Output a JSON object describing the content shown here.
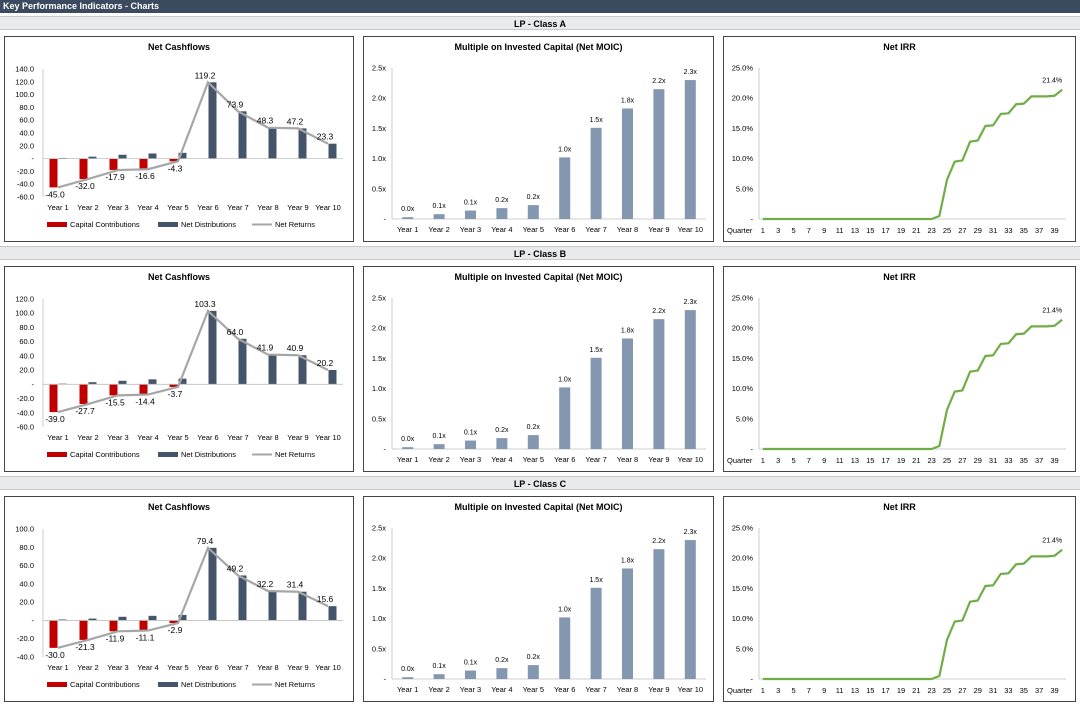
{
  "page": {
    "title": "Key Performance Indicators - Charts",
    "sections": [
      "LP - Class A",
      "LP - Class B",
      "LP - Class C"
    ]
  },
  "colors": {
    "contributions": "#c00000",
    "distributions": "#44546a",
    "returns": "#a6a6a6",
    "moic": "#8497b0",
    "irr": "#70ad47",
    "header_bar": "#3b4a5f"
  },
  "chart_data": [
    {
      "type": "bar",
      "title": "Net Cashflows",
      "section": "LP - Class A",
      "categories": [
        "Year 1",
        "Year 2",
        "Year 3",
        "Year 4",
        "Year 5",
        "Year 6",
        "Year 7",
        "Year 8",
        "Year 9",
        "Year 10"
      ],
      "series": [
        {
          "name": "Capital Contributions",
          "values": [
            -45.0,
            -32.0,
            -17.9,
            -16.6,
            -4.3,
            0,
            0,
            0,
            0,
            0
          ]
        },
        {
          "name": "Net Distributions",
          "values": [
            1,
            3,
            6,
            8,
            9,
            119.2,
            73.9,
            48.3,
            47.2,
            23.3
          ]
        },
        {
          "name": "Net Returns",
          "type": "line",
          "values": [
            -45.0,
            -32.0,
            -17.9,
            -16.6,
            -4.3,
            119.2,
            73.9,
            48.3,
            47.2,
            23.3
          ]
        }
      ],
      "data_labels": [
        "-45.0",
        "-32.0",
        "-17.9",
        "-16.6",
        "-4.3",
        "119.2",
        "73.9",
        "48.3",
        "47.2",
        "23.3"
      ],
      "y_ticks": [
        "140.0",
        "120.0",
        "100.0",
        "80.0",
        "60.0",
        "40.0",
        "20.0",
        "-",
        "-20.0",
        "-40.0",
        "-60.0"
      ],
      "ylim": [
        -60,
        140
      ],
      "legend": "bottom"
    },
    {
      "type": "bar",
      "title": "Multiple on Invested Capital (Net MOIC)",
      "section": "LP - Class A",
      "categories": [
        "Year 1",
        "Year 2",
        "Year 3",
        "Year 4",
        "Year 5",
        "Year 6",
        "Year 7",
        "Year 8",
        "Year 9",
        "Year 10"
      ],
      "values": [
        0.03,
        0.08,
        0.14,
        0.18,
        0.23,
        1.02,
        1.51,
        1.83,
        2.15,
        2.3
      ],
      "data_labels": [
        "0.0x",
        "0.1x",
        "0.1x",
        "0.2x",
        "0.2x",
        "1.0x",
        "1.5x",
        "1.8x",
        "2.2x",
        "2.3x"
      ],
      "y_ticks": [
        "2.5x",
        "2.0x",
        "1.5x",
        "1.0x",
        "0.5x",
        "-"
      ],
      "ylim": [
        0,
        2.5
      ]
    },
    {
      "type": "line",
      "title": "Net IRR",
      "section": "LP - Class A",
      "x": [
        1,
        2,
        3,
        4,
        5,
        6,
        7,
        8,
        9,
        10,
        11,
        12,
        13,
        14,
        15,
        16,
        17,
        18,
        19,
        20,
        21,
        22,
        23,
        24,
        25,
        26,
        27,
        28,
        29,
        30,
        31,
        32,
        33,
        34,
        35,
        36,
        37,
        38,
        39,
        40
      ],
      "values": [
        0,
        0,
        0,
        0,
        0,
        0,
        0,
        0,
        0,
        0,
        0,
        0,
        0,
        0,
        0,
        0,
        0,
        0,
        0,
        0,
        0,
        0,
        0,
        0.5,
        6.5,
        9.5,
        9.7,
        12.8,
        13.0,
        15.4,
        15.5,
        17.4,
        17.5,
        19.0,
        19.1,
        20.3,
        20.3,
        20.3,
        20.4,
        21.4
      ],
      "end_label": "21.4%",
      "x_title": "Quarter",
      "x_ticks": [
        "1",
        "3",
        "5",
        "7",
        "9",
        "11",
        "13",
        "15",
        "17",
        "19",
        "21",
        "23",
        "25",
        "27",
        "29",
        "31",
        "33",
        "35",
        "37",
        "39"
      ],
      "y_ticks": [
        "25.0%",
        "20.0%",
        "15.0%",
        "10.0%",
        "5.0%",
        "-"
      ],
      "ylim": [
        0,
        25
      ]
    },
    {
      "type": "bar",
      "title": "Net Cashflows",
      "section": "LP - Class B",
      "categories": [
        "Year 1",
        "Year 2",
        "Year 3",
        "Year 4",
        "Year 5",
        "Year 6",
        "Year 7",
        "Year 8",
        "Year 9",
        "Year 10"
      ],
      "series": [
        {
          "name": "Capital Contributions",
          "values": [
            -39.0,
            -27.7,
            -15.5,
            -14.4,
            -3.7,
            0,
            0,
            0,
            0,
            0
          ]
        },
        {
          "name": "Net Distributions",
          "values": [
            1,
            3,
            5,
            7,
            8,
            103.3,
            64.0,
            41.9,
            40.9,
            20.2
          ]
        },
        {
          "name": "Net Returns",
          "type": "line",
          "values": [
            -39.0,
            -27.7,
            -15.5,
            -14.4,
            -3.7,
            103.3,
            64.0,
            41.9,
            40.9,
            20.2
          ]
        }
      ],
      "data_labels": [
        "-39.0",
        "-27.7",
        "-15.5",
        "-14.4",
        "-3.7",
        "103.3",
        "64.0",
        "41.9",
        "40.9",
        "20.2"
      ],
      "y_ticks": [
        "120.0",
        "100.0",
        "80.0",
        "60.0",
        "40.0",
        "20.0",
        "-",
        "-20.0",
        "-40.0",
        "-60.0"
      ],
      "ylim": [
        -60,
        120
      ],
      "legend": "bottom"
    },
    {
      "type": "bar",
      "title": "Multiple on Invested Capital (Net MOIC)",
      "section": "LP - Class B",
      "categories": [
        "Year 1",
        "Year 2",
        "Year 3",
        "Year 4",
        "Year 5",
        "Year 6",
        "Year 7",
        "Year 8",
        "Year 9",
        "Year 10"
      ],
      "values": [
        0.03,
        0.08,
        0.14,
        0.18,
        0.23,
        1.02,
        1.51,
        1.83,
        2.15,
        2.3
      ],
      "data_labels": [
        "0.0x",
        "0.1x",
        "0.1x",
        "0.2x",
        "0.2x",
        "1.0x",
        "1.5x",
        "1.8x",
        "2.2x",
        "2.3x"
      ],
      "y_ticks": [
        "2.5x",
        "2.0x",
        "1.5x",
        "1.0x",
        "0.5x",
        "-"
      ],
      "ylim": [
        0,
        2.5
      ]
    },
    {
      "type": "line",
      "title": "Net IRR",
      "section": "LP - Class B",
      "x": [
        1,
        2,
        3,
        4,
        5,
        6,
        7,
        8,
        9,
        10,
        11,
        12,
        13,
        14,
        15,
        16,
        17,
        18,
        19,
        20,
        21,
        22,
        23,
        24,
        25,
        26,
        27,
        28,
        29,
        30,
        31,
        32,
        33,
        34,
        35,
        36,
        37,
        38,
        39,
        40
      ],
      "values": [
        0,
        0,
        0,
        0,
        0,
        0,
        0,
        0,
        0,
        0,
        0,
        0,
        0,
        0,
        0,
        0,
        0,
        0,
        0,
        0,
        0,
        0,
        0,
        0.5,
        6.5,
        9.5,
        9.7,
        12.8,
        13.0,
        15.4,
        15.5,
        17.4,
        17.5,
        19.0,
        19.1,
        20.3,
        20.3,
        20.3,
        20.4,
        21.4
      ],
      "end_label": "21.4%",
      "x_title": "Quarter",
      "x_ticks": [
        "1",
        "3",
        "5",
        "7",
        "9",
        "11",
        "13",
        "15",
        "17",
        "19",
        "21",
        "23",
        "25",
        "27",
        "29",
        "31",
        "33",
        "35",
        "37",
        "39"
      ],
      "y_ticks": [
        "25.0%",
        "20.0%",
        "15.0%",
        "10.0%",
        "5.0%",
        "-"
      ],
      "ylim": [
        0,
        25
      ]
    },
    {
      "type": "bar",
      "title": "Net Cashflows",
      "section": "LP - Class C",
      "categories": [
        "Year 1",
        "Year 2",
        "Year 3",
        "Year 4",
        "Year 5",
        "Year 6",
        "Year 7",
        "Year 8",
        "Year 9",
        "Year 10"
      ],
      "series": [
        {
          "name": "Capital Contributions",
          "values": [
            -30.0,
            -21.3,
            -11.9,
            -11.1,
            -2.9,
            0,
            0,
            0,
            0,
            0
          ]
        },
        {
          "name": "Net Distributions",
          "values": [
            1,
            2,
            4,
            5,
            6,
            79.4,
            49.2,
            32.2,
            31.4,
            15.6
          ]
        },
        {
          "name": "Net Returns",
          "type": "line",
          "values": [
            -30.0,
            -21.3,
            -11.9,
            -11.1,
            -2.9,
            79.4,
            49.2,
            32.2,
            31.4,
            15.6
          ]
        }
      ],
      "data_labels": [
        "-30.0",
        "-21.3",
        "-11.9",
        "-11.1",
        "-2.9",
        "79.4",
        "49.2",
        "32.2",
        "31.4",
        "15.6"
      ],
      "y_ticks": [
        "100.0",
        "80.0",
        "60.0",
        "40.0",
        "20.0",
        "-",
        "-20.0",
        "-40.0"
      ],
      "ylim": [
        -40,
        100
      ],
      "legend": "bottom"
    },
    {
      "type": "bar",
      "title": "Multiple on Invested Capital (Net MOIC)",
      "section": "LP - Class C",
      "categories": [
        "Year 1",
        "Year 2",
        "Year 3",
        "Year 4",
        "Year 5",
        "Year 6",
        "Year 7",
        "Year 8",
        "Year 9",
        "Year 10"
      ],
      "values": [
        0.03,
        0.08,
        0.14,
        0.18,
        0.23,
        1.02,
        1.51,
        1.83,
        2.15,
        2.3
      ],
      "data_labels": [
        "0.0x",
        "0.1x",
        "0.1x",
        "0.2x",
        "0.2x",
        "1.0x",
        "1.5x",
        "1.8x",
        "2.2x",
        "2.3x"
      ],
      "y_ticks": [
        "2.5x",
        "2.0x",
        "1.5x",
        "1.0x",
        "0.5x",
        "-"
      ],
      "ylim": [
        0,
        2.5
      ]
    },
    {
      "type": "line",
      "title": "Net IRR",
      "section": "LP - Class C",
      "x": [
        1,
        2,
        3,
        4,
        5,
        6,
        7,
        8,
        9,
        10,
        11,
        12,
        13,
        14,
        15,
        16,
        17,
        18,
        19,
        20,
        21,
        22,
        23,
        24,
        25,
        26,
        27,
        28,
        29,
        30,
        31,
        32,
        33,
        34,
        35,
        36,
        37,
        38,
        39,
        40
      ],
      "values": [
        0,
        0,
        0,
        0,
        0,
        0,
        0,
        0,
        0,
        0,
        0,
        0,
        0,
        0,
        0,
        0,
        0,
        0,
        0,
        0,
        0,
        0,
        0,
        0.5,
        6.5,
        9.5,
        9.7,
        12.8,
        13.0,
        15.4,
        15.5,
        17.4,
        17.5,
        19.0,
        19.1,
        20.3,
        20.3,
        20.3,
        20.4,
        21.4
      ],
      "end_label": "21.4%",
      "x_title": "Quarter",
      "x_ticks": [
        "1",
        "3",
        "5",
        "7",
        "9",
        "11",
        "13",
        "15",
        "17",
        "19",
        "21",
        "23",
        "25",
        "27",
        "29",
        "31",
        "33",
        "35",
        "37",
        "39"
      ],
      "y_ticks": [
        "25.0%",
        "20.0%",
        "15.0%",
        "10.0%",
        "5.0%",
        "-"
      ],
      "ylim": [
        0,
        25
      ]
    }
  ]
}
